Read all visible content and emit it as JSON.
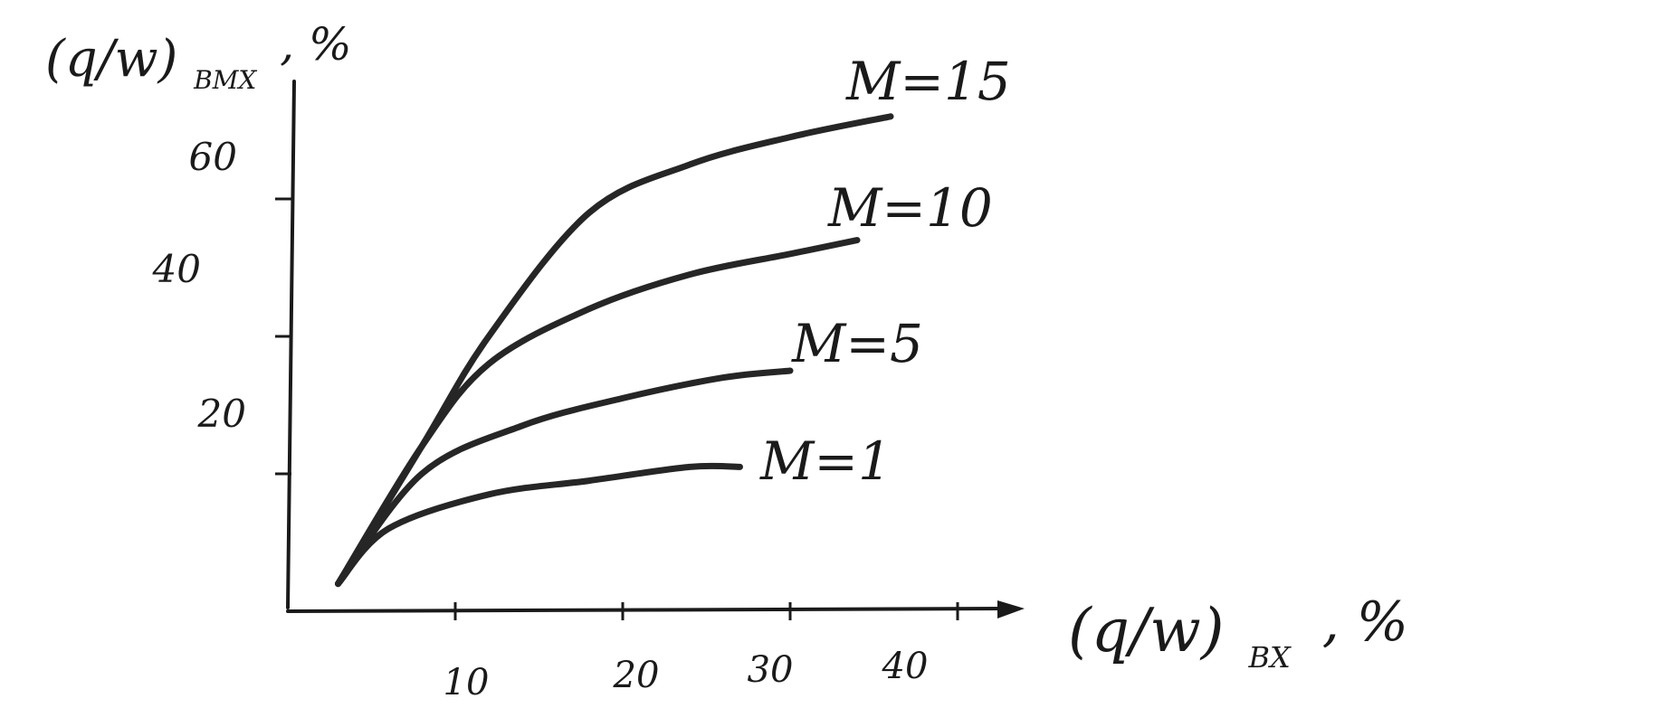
{
  "chart_data": {
    "type": "line",
    "xlabel": "(q/w)",
    "xlabel_sub": "BX",
    "xlabel_suffix": ", %",
    "ylabel": "(q/w)",
    "ylabel_sub": "BMX",
    "ylabel_suffix": ", %",
    "xlim": [
      0,
      48
    ],
    "ylim": [
      0,
      75
    ],
    "x_ticks": [
      10,
      20,
      30,
      40
    ],
    "x_tick_labels": [
      "10",
      "20",
      "30",
      "40"
    ],
    "y_ticks": [
      20,
      40,
      60
    ],
    "y_tick_labels": [
      "20",
      "40",
      "60"
    ],
    "grid": false,
    "legend": "labels at line ends",
    "series": [
      {
        "name": "M=15",
        "points": [
          [
            3,
            4
          ],
          [
            8,
            24
          ],
          [
            12,
            40
          ],
          [
            18,
            58
          ],
          [
            24,
            65
          ],
          [
            30,
            69
          ],
          [
            36,
            72
          ]
        ]
      },
      {
        "name": "M=10",
        "points": [
          [
            3,
            4
          ],
          [
            8,
            24
          ],
          [
            12,
            36
          ],
          [
            18,
            44
          ],
          [
            24,
            49
          ],
          [
            30,
            52
          ],
          [
            34,
            54
          ]
        ]
      },
      {
        "name": "M=5",
        "points": [
          [
            3,
            4
          ],
          [
            8,
            20
          ],
          [
            14,
            27
          ],
          [
            20,
            31
          ],
          [
            26,
            34
          ],
          [
            30,
            35
          ]
        ]
      },
      {
        "name": "M=1",
        "points": [
          [
            3,
            4
          ],
          [
            6,
            12
          ],
          [
            12,
            17
          ],
          [
            18,
            19
          ],
          [
            24,
            21
          ],
          [
            27,
            21
          ]
        ]
      }
    ]
  }
}
